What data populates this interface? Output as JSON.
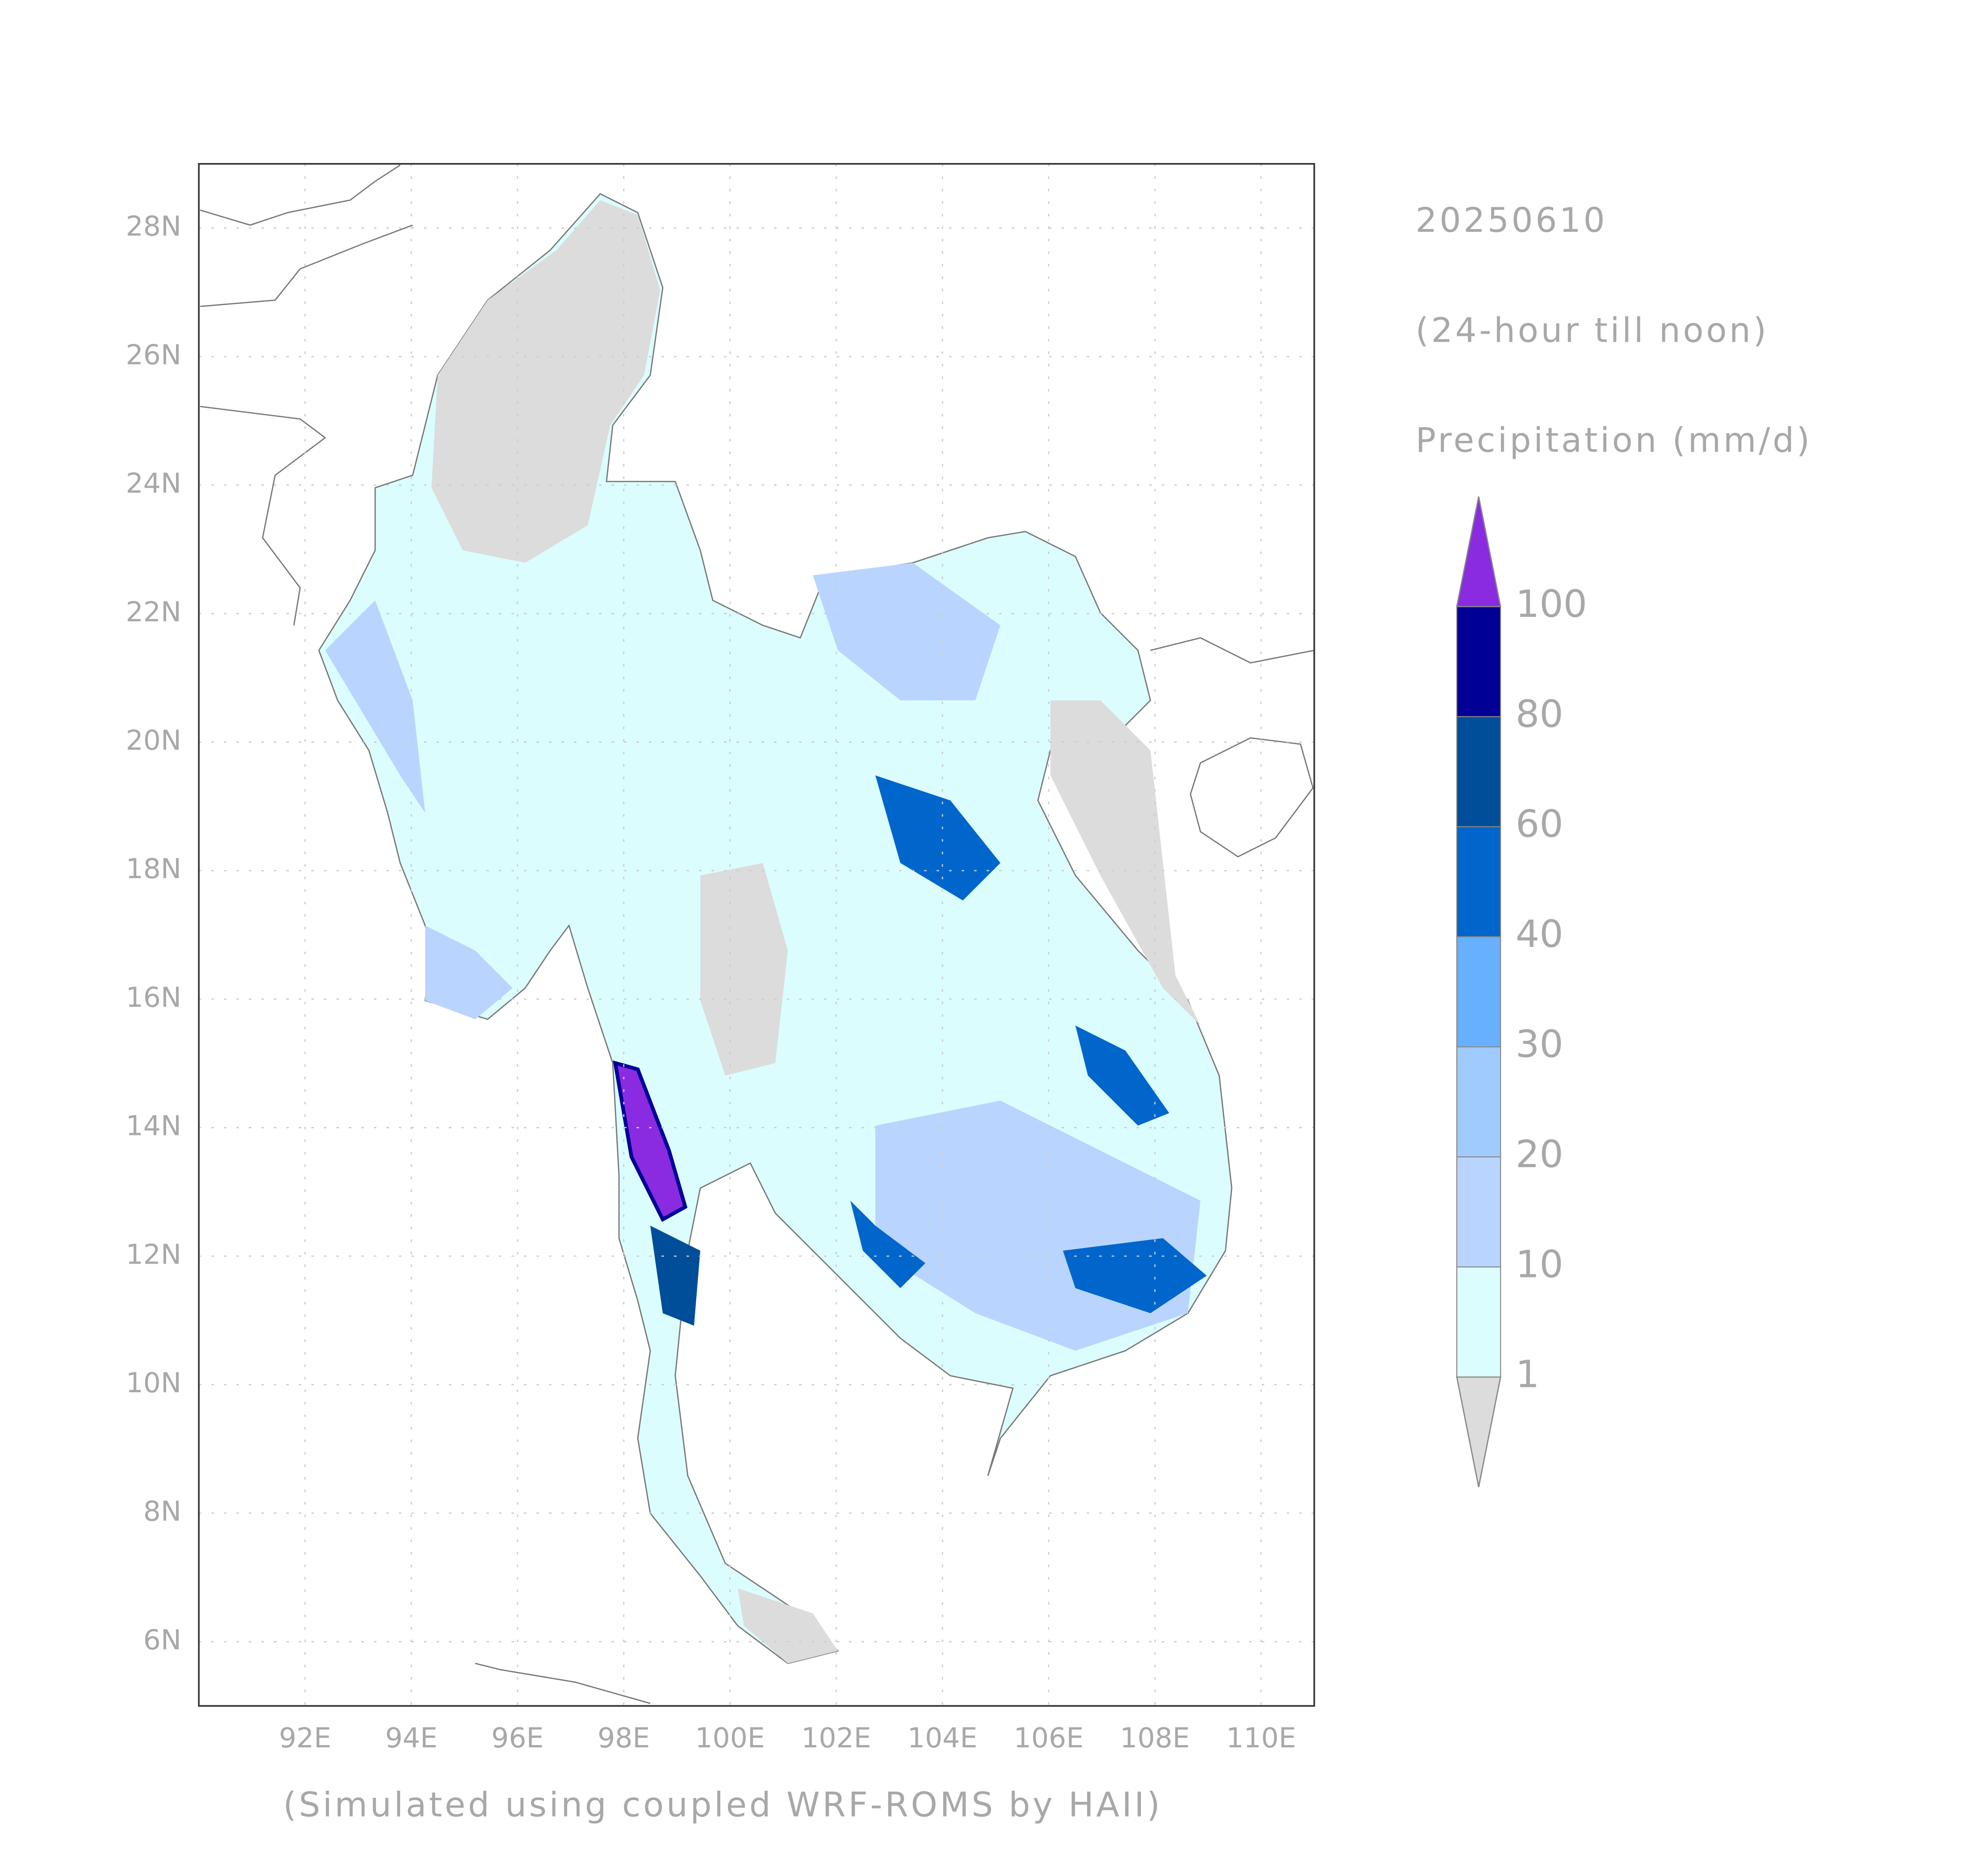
{
  "map": {
    "date": "20250610",
    "period": "(24-hour till noon)",
    "variable": "Precipitation (mm/d)",
    "footer": "(Simulated using coupled WRF-ROMS by HAII)",
    "xlim": [
      90,
      111
    ],
    "ylim": [
      5,
      29
    ],
    "xticks": [
      {
        "value": 92,
        "label": "92E"
      },
      {
        "value": 94,
        "label": "94E"
      },
      {
        "value": 96,
        "label": "96E"
      },
      {
        "value": 98,
        "label": "98E"
      },
      {
        "value": 100,
        "label": "100E"
      },
      {
        "value": 102,
        "label": "102E"
      },
      {
        "value": 104,
        "label": "104E"
      },
      {
        "value": 106,
        "label": "106E"
      },
      {
        "value": 108,
        "label": "108E"
      },
      {
        "value": 110,
        "label": "110E"
      }
    ],
    "yticks": [
      {
        "value": 6,
        "label": "6N"
      },
      {
        "value": 8,
        "label": "8N"
      },
      {
        "value": 10,
        "label": "10N"
      },
      {
        "value": 12,
        "label": "12N"
      },
      {
        "value": 14,
        "label": "14N"
      },
      {
        "value": 16,
        "label": "16N"
      },
      {
        "value": 18,
        "label": "18N"
      },
      {
        "value": 20,
        "label": "20N"
      },
      {
        "value": 22,
        "label": "22N"
      },
      {
        "value": 24,
        "label": "24N"
      },
      {
        "value": 26,
        "label": "26N"
      },
      {
        "value": 28,
        "label": "28N"
      }
    ],
    "grid": true,
    "colorbar": {
      "levels": [
        1,
        10,
        20,
        30,
        40,
        60,
        80,
        100
      ],
      "colors": [
        "#dcdcdc",
        "#dcfdfd",
        "#b9d5ff",
        "#a0cbff",
        "#66b0ff",
        "#0066cc",
        "#004d99",
        "#000096",
        "#8a2be2"
      ]
    }
  }
}
